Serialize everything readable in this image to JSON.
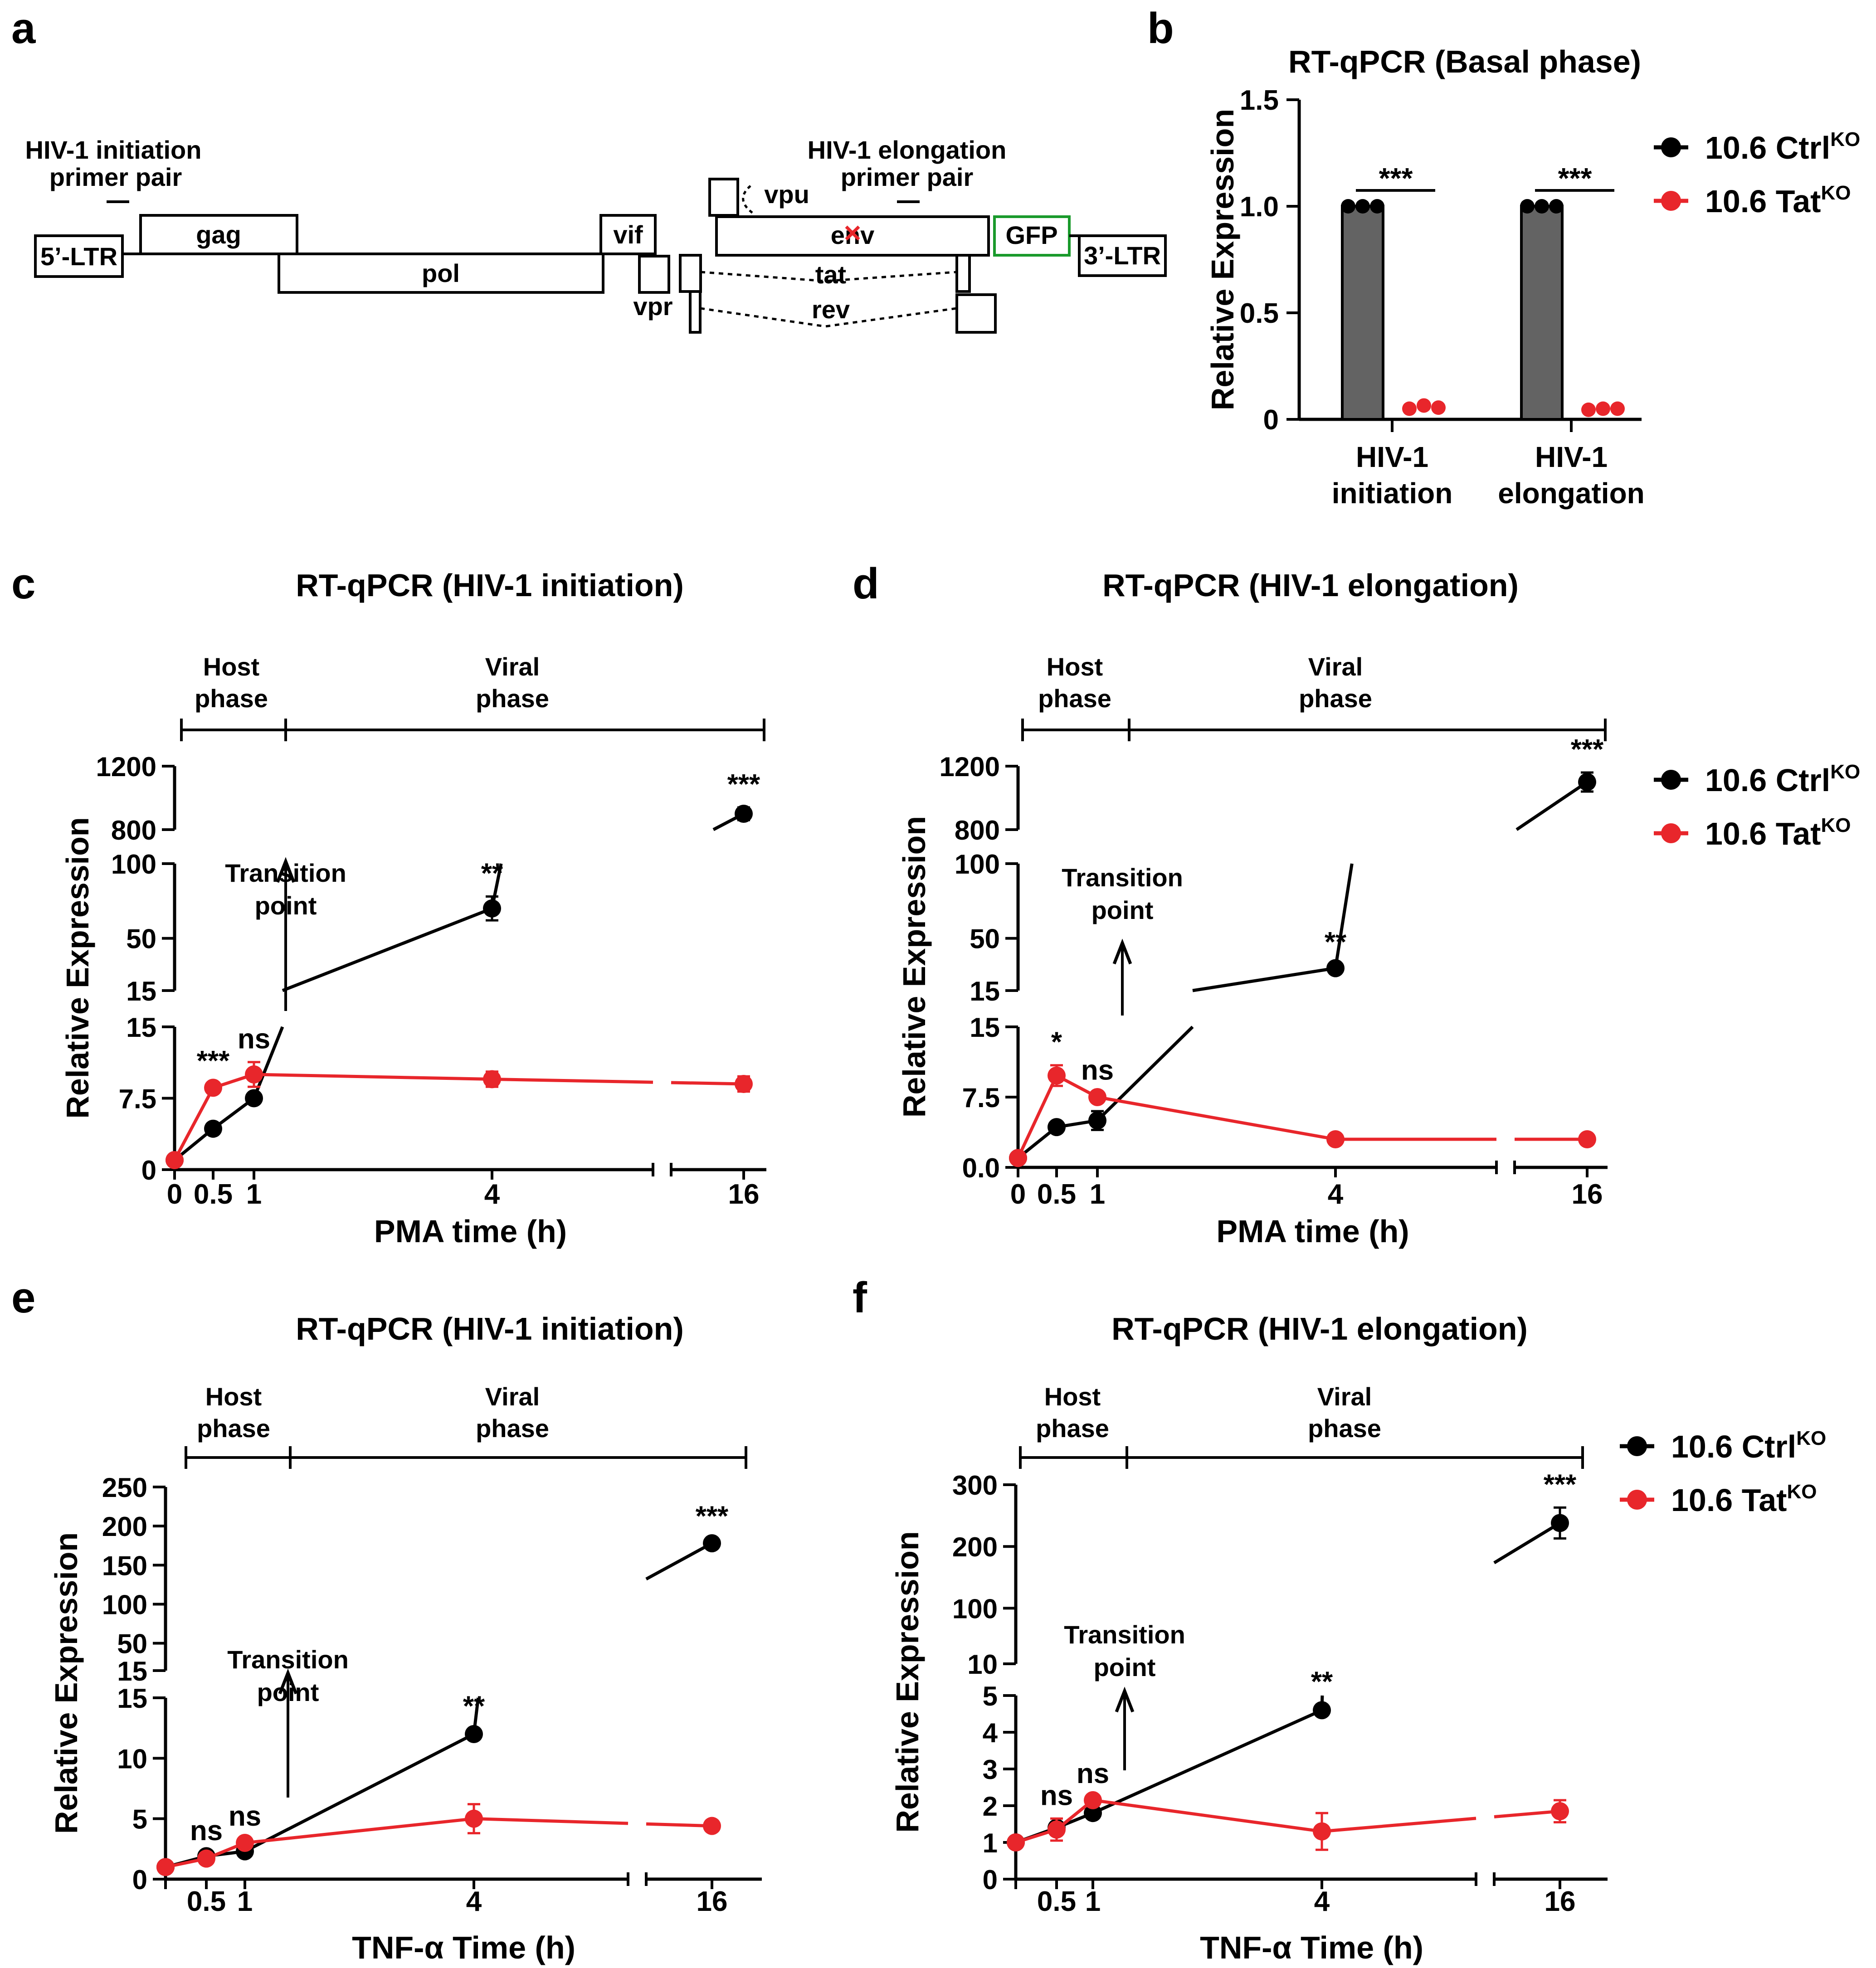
{
  "panel_letters": [
    "a",
    "b",
    "c",
    "d",
    "e",
    "f"
  ],
  "genome_map": {
    "labels": {
      "initiation_primer_line1": "HIV-1 initiation",
      "initiation_primer_line2": "primer pair",
      "elongation_primer_line1": "HIV-1 elongation",
      "elongation_primer_line2": "primer pair",
      "ltr5": "5’-LTR",
      "gag": "gag",
      "pol": "pol",
      "vif": "vif",
      "vpr": "vpr",
      "vpu": "vpu",
      "env": "env",
      "tat": "tat",
      "rev": "rev",
      "gfp": "GFP",
      "ltr3": "3’-LTR"
    },
    "colors": {
      "gfp": "#1a9a2c",
      "mutation_mark": "#e8262b"
    }
  },
  "legend": {
    "ctrl_base": "10.6 Ctrl",
    "ctrl_sup": "KO",
    "tat_base": "10.6 Tat",
    "tat_sup": "KO"
  },
  "colors": {
    "ctrl": "#000000",
    "tat": "#e8262b",
    "bar_fill": "#636363"
  },
  "chart_data": [
    {
      "panel": "b",
      "type": "bar",
      "title": "RT-qPCR (Basal phase)",
      "ylabel": "Relative Expression",
      "ylim": [
        0,
        1.5
      ],
      "yticks": [
        "0",
        "0.5",
        "1.0",
        "1.5"
      ],
      "categories": [
        [
          "HIV-1",
          "initiation"
        ],
        [
          "HIV-1",
          "elongation"
        ]
      ],
      "series": [
        {
          "name": "10.6 CtrlKO",
          "values": [
            1.0,
            1.0
          ],
          "points": [
            [
              1.0,
              1.0,
              1.0
            ],
            [
              1.0,
              1.0,
              1.0
            ]
          ]
        },
        {
          "name": "10.6 TatKO",
          "values": [
            0.06,
            0.05
          ],
          "points": [
            [
              0.05,
              0.065,
              0.055
            ],
            [
              0.045,
              0.05,
              0.05
            ]
          ]
        }
      ],
      "significance": [
        "***",
        "***"
      ]
    },
    {
      "panel": "c",
      "type": "line",
      "title": "RT-qPCR (HIV-1 initiation)",
      "xlabel": "PMA time (h)",
      "ylabel": "Relative Expression",
      "phase_labels": {
        "host": [
          "Host",
          "phase"
        ],
        "viral": [
          "Viral",
          "phase"
        ]
      },
      "transition_label": [
        "Transition",
        "point"
      ],
      "x": [
        0,
        0.5,
        1,
        4,
        16
      ],
      "xticks": [
        "0",
        "0.5",
        "1",
        "4",
        "16"
      ],
      "ysegments": [
        {
          "range": [
            0,
            15
          ],
          "ticks": [
            "0",
            "7.5",
            "15"
          ]
        },
        {
          "range": [
            15,
            100
          ],
          "ticks": [
            "15",
            "50",
            "100"
          ]
        },
        {
          "range": [
            800,
            1200
          ],
          "ticks": [
            "800",
            "1200"
          ]
        }
      ],
      "series": [
        {
          "name": "10.6 CtrlKO",
          "y": [
            1,
            4.3,
            7.5,
            70,
            900
          ],
          "err": [
            0,
            0.3,
            0.4,
            8,
            40
          ]
        },
        {
          "name": "10.6 TatKO",
          "y": [
            1,
            8.6,
            10,
            9.5,
            9
          ],
          "err": [
            0,
            0.4,
            1.3,
            0.8,
            0.8
          ]
        }
      ],
      "significance": [
        "",
        "***",
        "ns",
        "**",
        "***"
      ]
    },
    {
      "panel": "d",
      "type": "line",
      "title": "RT-qPCR (HIV-1 elongation)",
      "xlabel": "PMA time (h)",
      "ylabel": "Relative Expression",
      "phase_labels": {
        "host": [
          "Host",
          "phase"
        ],
        "viral": [
          "Viral",
          "phase"
        ]
      },
      "transition_label": [
        "Transition",
        "point"
      ],
      "x": [
        0,
        0.5,
        1,
        4,
        16
      ],
      "xticks": [
        "0",
        "0.5",
        "1",
        "4",
        "16"
      ],
      "ysegments": [
        {
          "range": [
            0,
            15
          ],
          "ticks": [
            "0.0",
            "7.5",
            "15"
          ]
        },
        {
          "range": [
            15,
            100
          ],
          "ticks": [
            "15",
            "50",
            "100"
          ]
        },
        {
          "range": [
            800,
            1200
          ],
          "ticks": [
            "800",
            "1200"
          ]
        }
      ],
      "series": [
        {
          "name": "10.6 CtrlKO",
          "y": [
            1,
            4.3,
            5,
            30,
            1100
          ],
          "err": [
            0,
            0.3,
            1,
            2,
            60
          ]
        },
        {
          "name": "10.6 TatKO",
          "y": [
            1,
            9.8,
            7.5,
            3,
            3
          ],
          "err": [
            0,
            1.1,
            0.4,
            0.2,
            0.2
          ]
        }
      ],
      "significance": [
        "",
        "*",
        "ns",
        "**",
        "***"
      ]
    },
    {
      "panel": "e",
      "type": "line",
      "title": "RT-qPCR (HIV-1 initiation)",
      "xlabel": "TNF-α Time (h)",
      "ylabel": "Relative Expression",
      "phase_labels": {
        "host": [
          "Host",
          "phase"
        ],
        "viral": [
          "Viral",
          "phase"
        ]
      },
      "transition_label": [
        "Transition",
        "point"
      ],
      "x": [
        0,
        0.5,
        1,
        4,
        16
      ],
      "xticks": [
        "",
        "0.5",
        "1",
        "4",
        "16"
      ],
      "ysegments": [
        {
          "range": [
            0,
            15
          ],
          "ticks": [
            "0",
            "5",
            "10",
            "15"
          ]
        },
        {
          "range": [
            15,
            250
          ],
          "ticks": [
            "15",
            "50",
            "100",
            "150",
            "200",
            "250"
          ]
        }
      ],
      "series": [
        {
          "name": "10.6 CtrlKO",
          "y": [
            1,
            1.9,
            2.3,
            12,
            178
          ],
          "err": [
            0,
            0.2,
            0.2,
            0.4,
            5
          ]
        },
        {
          "name": "10.6 TatKO",
          "y": [
            1,
            1.7,
            3,
            5,
            4.4
          ],
          "err": [
            0,
            0.2,
            0.3,
            1.2,
            0.3
          ]
        }
      ],
      "significance": [
        "",
        "ns",
        "ns",
        "**",
        "***"
      ]
    },
    {
      "panel": "f",
      "type": "line",
      "title": "RT-qPCR (HIV-1 elongation)",
      "xlabel": "TNF-α Time (h)",
      "ylabel": "Relative Expression",
      "phase_labels": {
        "host": [
          "Host",
          "phase"
        ],
        "viral": [
          "Viral",
          "phase"
        ]
      },
      "transition_label": [
        "Transition",
        "point"
      ],
      "x": [
        0,
        0.5,
        1,
        4,
        16
      ],
      "xticks": [
        "",
        "0.5",
        "1",
        "4",
        "16"
      ],
      "ysegments": [
        {
          "range": [
            0,
            5
          ],
          "ticks": [
            "0",
            "1",
            "2",
            "3",
            "4",
            "5"
          ]
        },
        {
          "range": [
            10,
            300
          ],
          "ticks": [
            "10",
            "100",
            "200",
            "300"
          ]
        }
      ],
      "series": [
        {
          "name": "10.6 CtrlKO",
          "y": [
            1,
            1.4,
            1.8,
            4.6,
            238
          ],
          "err": [
            0,
            0.1,
            0.1,
            0.15,
            25
          ]
        },
        {
          "name": "10.6 TatKO",
          "y": [
            1,
            1.35,
            2.15,
            1.3,
            1.85
          ],
          "err": [
            0,
            0.3,
            0.1,
            0.5,
            0.3
          ]
        }
      ],
      "significance": [
        "",
        "ns",
        "ns",
        "**",
        "***"
      ]
    }
  ]
}
